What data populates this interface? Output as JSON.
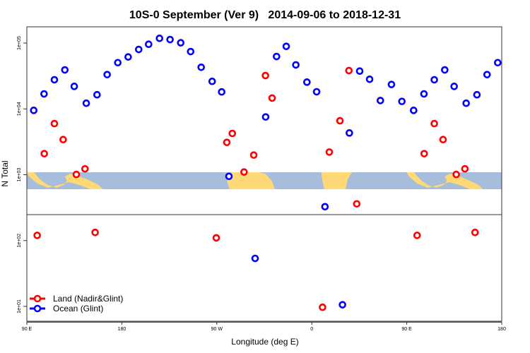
{
  "chart_data": {
    "type": "scatter",
    "title": "10S-0 September (Ver 9)   2014-09-06 to 2018-12-31",
    "xlabel": "Longitude (deg E)",
    "ylabel": "N Total",
    "y_scale": "log",
    "ylim": [
      7,
      150000
    ],
    "x_range_deg_e": [
      "90 E",
      "180 (repeated after 360 deg wrap)"
    ],
    "x_ticks": [
      "90 E",
      "180",
      "90 W",
      "0",
      "90 E",
      "180"
    ],
    "y_ticks": [
      "1e+01",
      "1e+02",
      "1e+03",
      "1e+04",
      "1e+05"
    ],
    "grid": false,
    "legend_position": "bottom-left",
    "map_strip": true,
    "colors": {
      "land": "#ff0000",
      "ocean": "#0000ff",
      "map_water": "#a6bddb",
      "map_land": "#fed976"
    },
    "series": [
      {
        "name": "Land (Nadir&Glint)",
        "color": "#ff0000",
        "points": [
          [
            99.8,
            120
          ],
          [
            106.5,
            2090
          ],
          [
            116.1,
            5980
          ],
          [
            124.4,
            3420
          ],
          [
            136.9,
            1010
          ],
          [
            145.1,
            1230
          ],
          [
            154.7,
            133
          ],
          [
            -90.5,
            110
          ],
          [
            -80.5,
            3100
          ],
          [
            -75.3,
            4240
          ],
          [
            -64.2,
            1100
          ],
          [
            -55.0,
            1990
          ],
          [
            -43.9,
            32100
          ],
          [
            -37.6,
            14600
          ],
          [
            10.2,
            9.7
          ],
          [
            16.6,
            2210
          ],
          [
            26.7,
            6600
          ],
          [
            35.2,
            38200
          ],
          [
            42.6,
            361
          ]
        ]
      },
      {
        "name": "Ocean (Glint)",
        "color": "#0000ff",
        "points": [
          [
            96.5,
            9500
          ],
          [
            106.3,
            16900
          ],
          [
            116.1,
            27700
          ],
          [
            126.0,
            39100
          ],
          [
            134.9,
            22000
          ],
          [
            146.3,
            12200
          ],
          [
            156.5,
            16400
          ],
          [
            166.1,
            33200
          ],
          [
            176.2,
            50400
          ],
          [
            -174.0,
            61500
          ],
          [
            -164.0,
            80000
          ],
          [
            -154.6,
            95900
          ],
          [
            -144.3,
            118000
          ],
          [
            -134.3,
            113000
          ],
          [
            -124.2,
            101000
          ],
          [
            -114.8,
            74300
          ],
          [
            -104.8,
            42900
          ],
          [
            -94.4,
            26200
          ],
          [
            -85.4,
            18100
          ],
          [
            -78.5,
            946
          ],
          [
            -53.7,
            53.6
          ],
          [
            -43.7,
            7540
          ],
          [
            -33.4,
            62500
          ],
          [
            -24.2,
            89100
          ],
          [
            -15.1,
            46600
          ],
          [
            -4.6,
            25500
          ],
          [
            4.6,
            18200
          ],
          [
            12.5,
            327
          ],
          [
            29.1,
            10.6
          ],
          [
            35.6,
            4310
          ],
          [
            45.4,
            37500
          ],
          [
            54.8,
            28200
          ],
          [
            65.0,
            13400
          ],
          [
            75.5,
            23500
          ],
          [
            85.4,
            13000
          ]
        ]
      }
    ]
  }
}
